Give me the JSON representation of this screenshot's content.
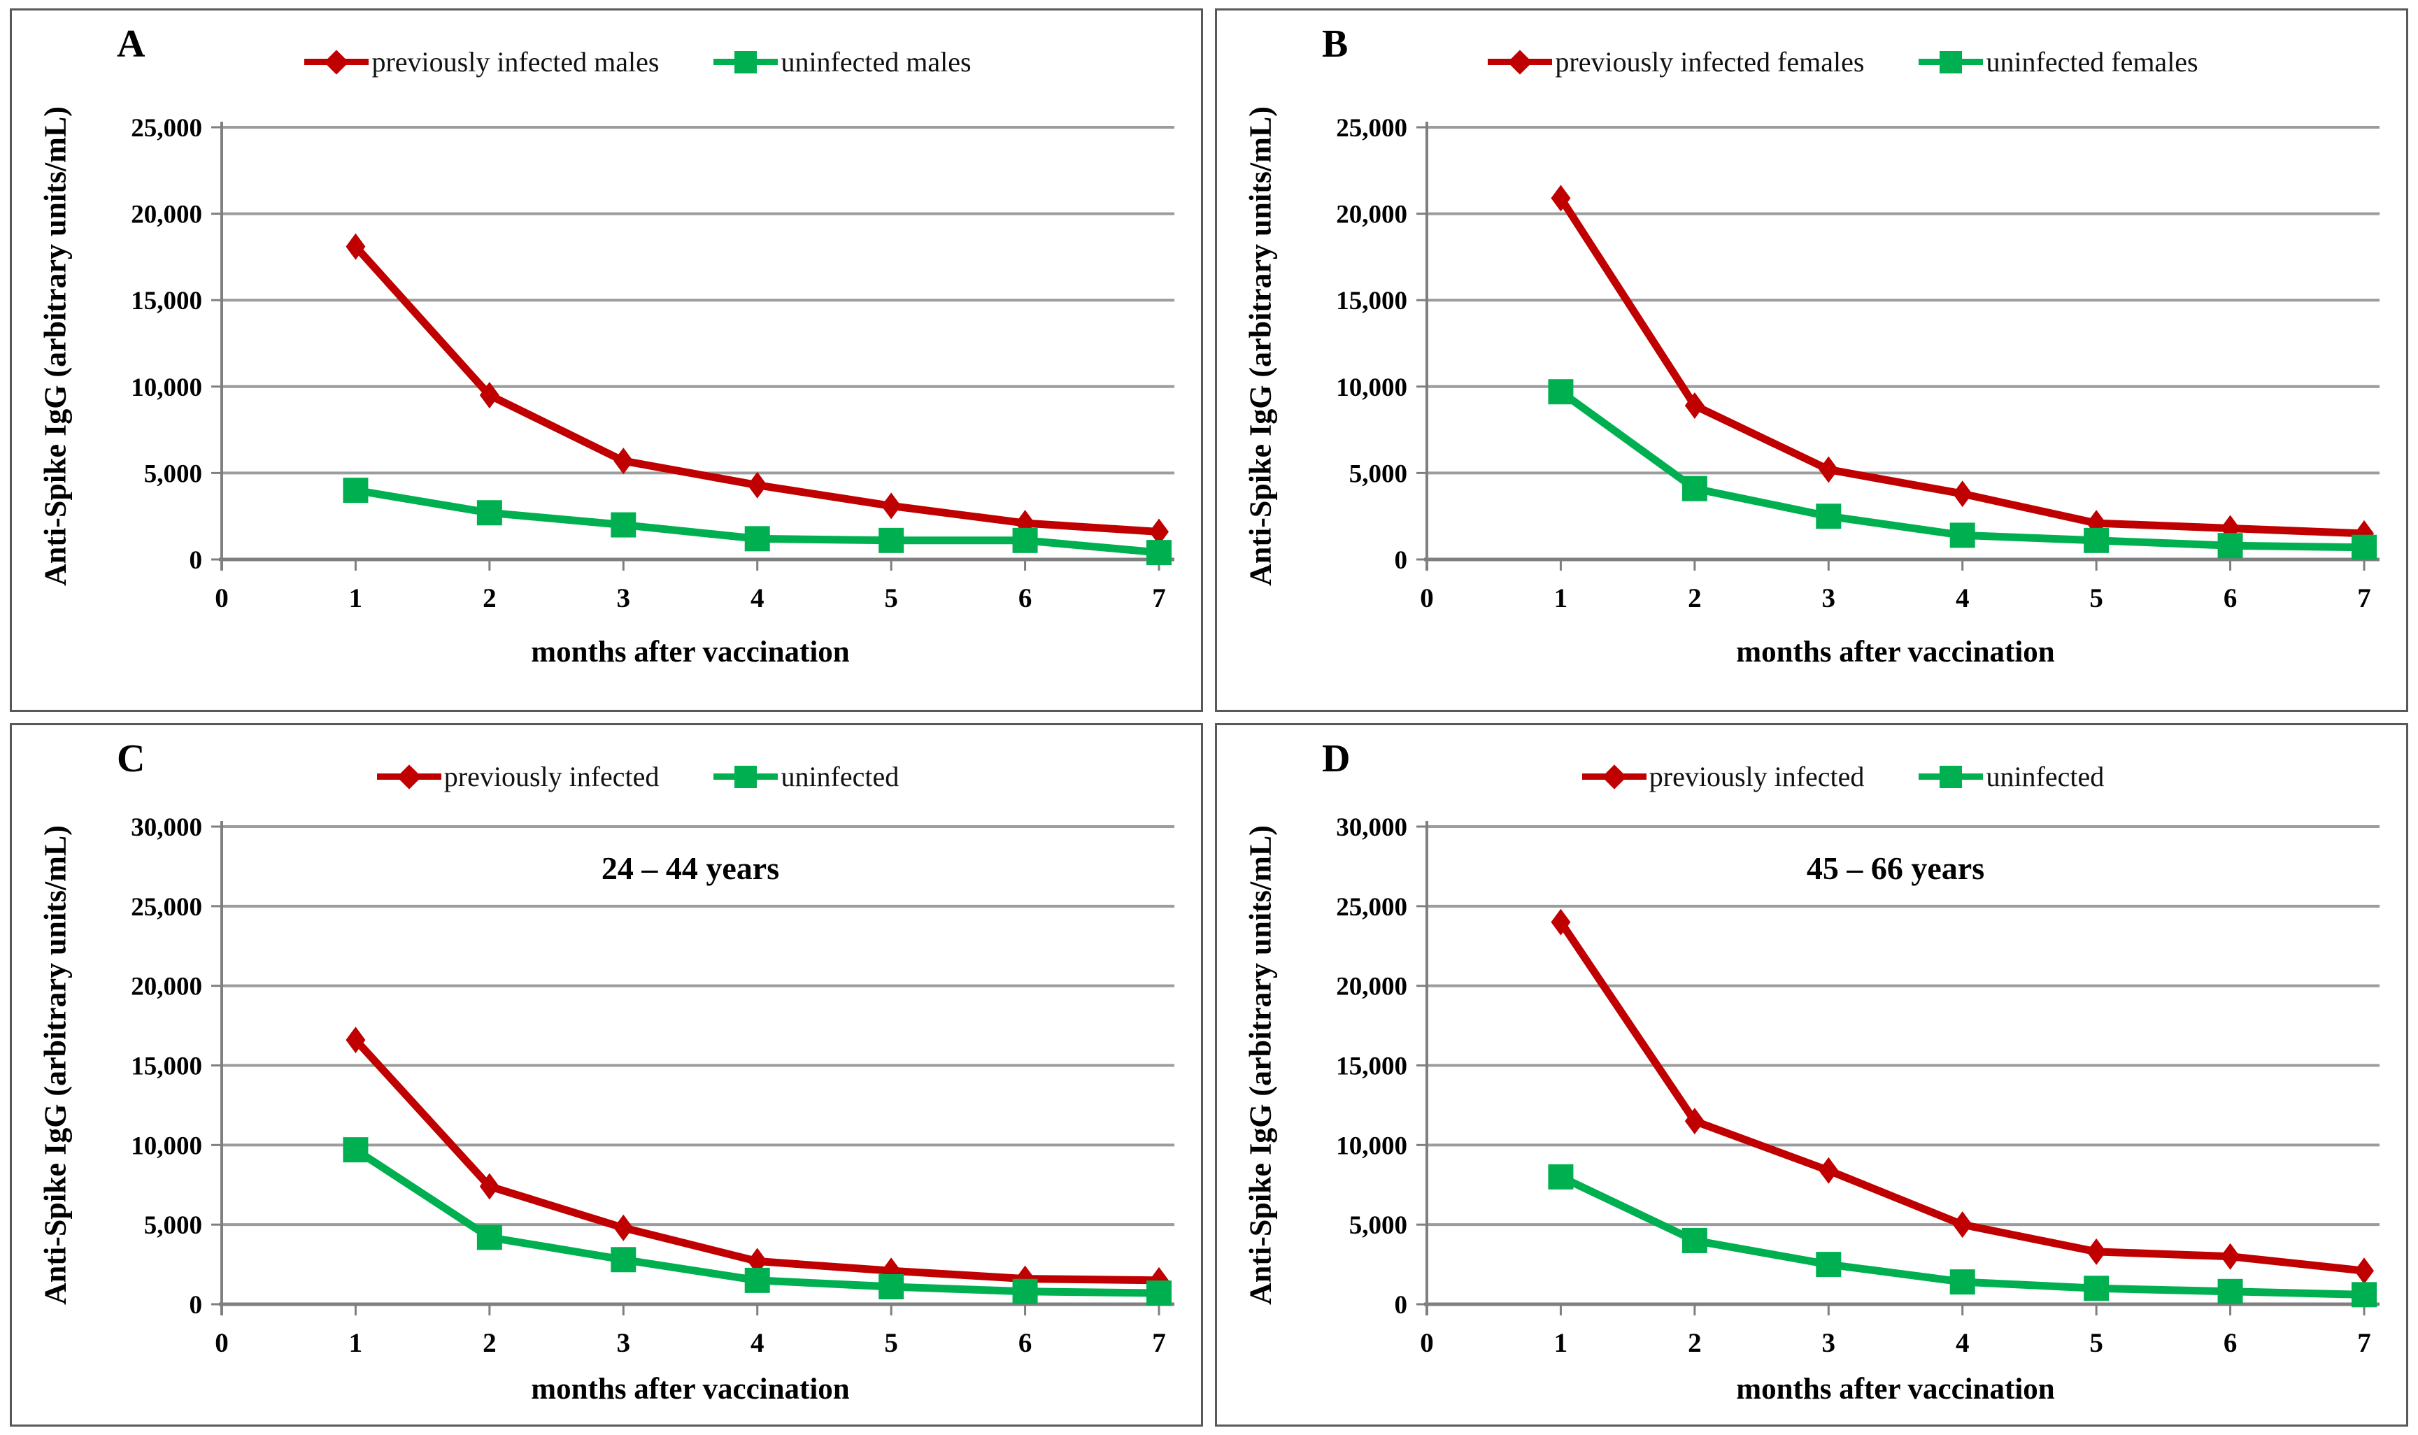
{
  "figure": {
    "colors": {
      "infected_red": "#C00000",
      "uninfected_green": "#00B050",
      "gridline": "#9C9C9C",
      "axis": "#7F7F7F",
      "panel_border": "#595959",
      "text": "#000000"
    }
  },
  "chart_data": [
    {
      "type": "line",
      "panel": "A",
      "title": "",
      "xlabel": "months after vaccination",
      "ylabel": "Anti-Spike IgG (arbitrary units/mL)",
      "x": [
        1,
        2,
        3,
        4,
        5,
        6,
        7
      ],
      "x_tick_labels": [
        "0",
        "1",
        "2",
        "3",
        "4",
        "5",
        "6",
        "7"
      ],
      "xlim": [
        0,
        7
      ],
      "ylim": [
        0,
        25000
      ],
      "y_tick_step": 5000,
      "y_tick_labels": [
        "0",
        "5,000",
        "10,000",
        "15,000",
        "20,000",
        "25,000"
      ],
      "grid": true,
      "legend_position": "top",
      "series": [
        {
          "name": "previously infected males",
          "color": "#C00000",
          "marker": "diamond",
          "values": [
            18100,
            9500,
            5700,
            4300,
            3100,
            2100,
            1600
          ]
        },
        {
          "name": "uninfected males",
          "color": "#00B050",
          "marker": "square",
          "values": [
            4000,
            2700,
            2000,
            1200,
            1100,
            1100,
            400
          ]
        }
      ]
    },
    {
      "type": "line",
      "panel": "B",
      "title": "",
      "xlabel": "months after vaccination",
      "ylabel": "Anti-Spike IgG (arbitrary units/mL)",
      "x": [
        1,
        2,
        3,
        4,
        5,
        6,
        7
      ],
      "x_tick_labels": [
        "0",
        "1",
        "2",
        "3",
        "4",
        "5",
        "6",
        "7"
      ],
      "xlim": [
        0,
        7
      ],
      "ylim": [
        0,
        25000
      ],
      "y_tick_step": 5000,
      "y_tick_labels": [
        "0",
        "5,000",
        "10,000",
        "15,000",
        "20,000",
        "25,000"
      ],
      "grid": true,
      "legend_position": "top",
      "series": [
        {
          "name": "previously infected females",
          "color": "#C00000",
          "marker": "diamond",
          "values": [
            20900,
            8900,
            5200,
            3800,
            2100,
            1800,
            1500
          ]
        },
        {
          "name": "uninfected females",
          "color": "#00B050",
          "marker": "square",
          "values": [
            9700,
            4100,
            2500,
            1400,
            1100,
            800,
            700
          ]
        }
      ]
    },
    {
      "type": "line",
      "panel": "C",
      "title": "24 – 44 years",
      "xlabel": "months after vaccination",
      "ylabel": "Anti-Spike IgG (arbitrary units/mL)",
      "x": [
        1,
        2,
        3,
        4,
        5,
        6,
        7
      ],
      "x_tick_labels": [
        "0",
        "1",
        "2",
        "3",
        "4",
        "5",
        "6",
        "7"
      ],
      "xlim": [
        0,
        7
      ],
      "ylim": [
        0,
        30000
      ],
      "y_tick_step": 5000,
      "y_tick_labels": [
        "0",
        "5,000",
        "10,000",
        "15,000",
        "20,000",
        "25,000",
        "30,000"
      ],
      "grid": true,
      "legend_position": "top",
      "series": [
        {
          "name": "previously infected",
          "color": "#C00000",
          "marker": "diamond",
          "values": [
            16600,
            7400,
            4800,
            2700,
            2100,
            1600,
            1500
          ]
        },
        {
          "name": "uninfected",
          "color": "#00B050",
          "marker": "square",
          "values": [
            9700,
            4200,
            2800,
            1500,
            1100,
            800,
            700
          ]
        }
      ]
    },
    {
      "type": "line",
      "panel": "D",
      "title": "45 – 66 years",
      "xlabel": "months after vaccination",
      "ylabel": "Anti-Spike IgG (arbitrary units/mL)",
      "x": [
        1,
        2,
        3,
        4,
        5,
        6,
        7
      ],
      "x_tick_labels": [
        "0",
        "1",
        "2",
        "3",
        "4",
        "5",
        "6",
        "7"
      ],
      "xlim": [
        0,
        7
      ],
      "ylim": [
        0,
        30000
      ],
      "y_tick_step": 5000,
      "y_tick_labels": [
        "0",
        "5,000",
        "10,000",
        "15,000",
        "20,000",
        "25,000",
        "30,000"
      ],
      "grid": true,
      "legend_position": "top",
      "series": [
        {
          "name": "previously infected",
          "color": "#C00000",
          "marker": "diamond",
          "values": [
            24000,
            11500,
            8400,
            5000,
            3300,
            3000,
            2100
          ]
        },
        {
          "name": "uninfected",
          "color": "#00B050",
          "marker": "square",
          "values": [
            8000,
            4000,
            2500,
            1400,
            1000,
            800,
            600
          ]
        }
      ]
    }
  ]
}
